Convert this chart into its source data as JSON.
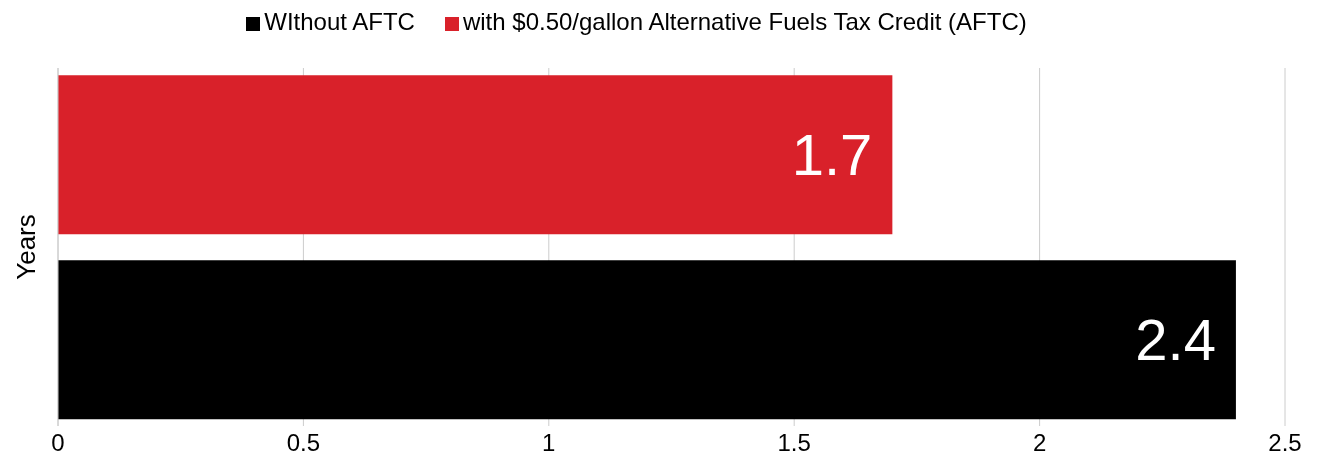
{
  "chart_data": {
    "type": "bar",
    "orientation": "horizontal",
    "ylabel": "Years",
    "categories": [
      null
    ],
    "series": [
      {
        "name": "with $0.50/gallon Alternative Fuels Tax Credit (AFTC)",
        "color": "#d9212a",
        "values": [
          1.7
        ]
      },
      {
        "name": "WIthout AFTC",
        "color": "#000000",
        "values": [
          2.4
        ]
      }
    ],
    "xlim": [
      0,
      2.5
    ],
    "xticks": [
      0,
      0.5,
      1,
      1.5,
      2,
      2.5
    ],
    "grid": "x",
    "legend": "top",
    "data_labels": true
  }
}
